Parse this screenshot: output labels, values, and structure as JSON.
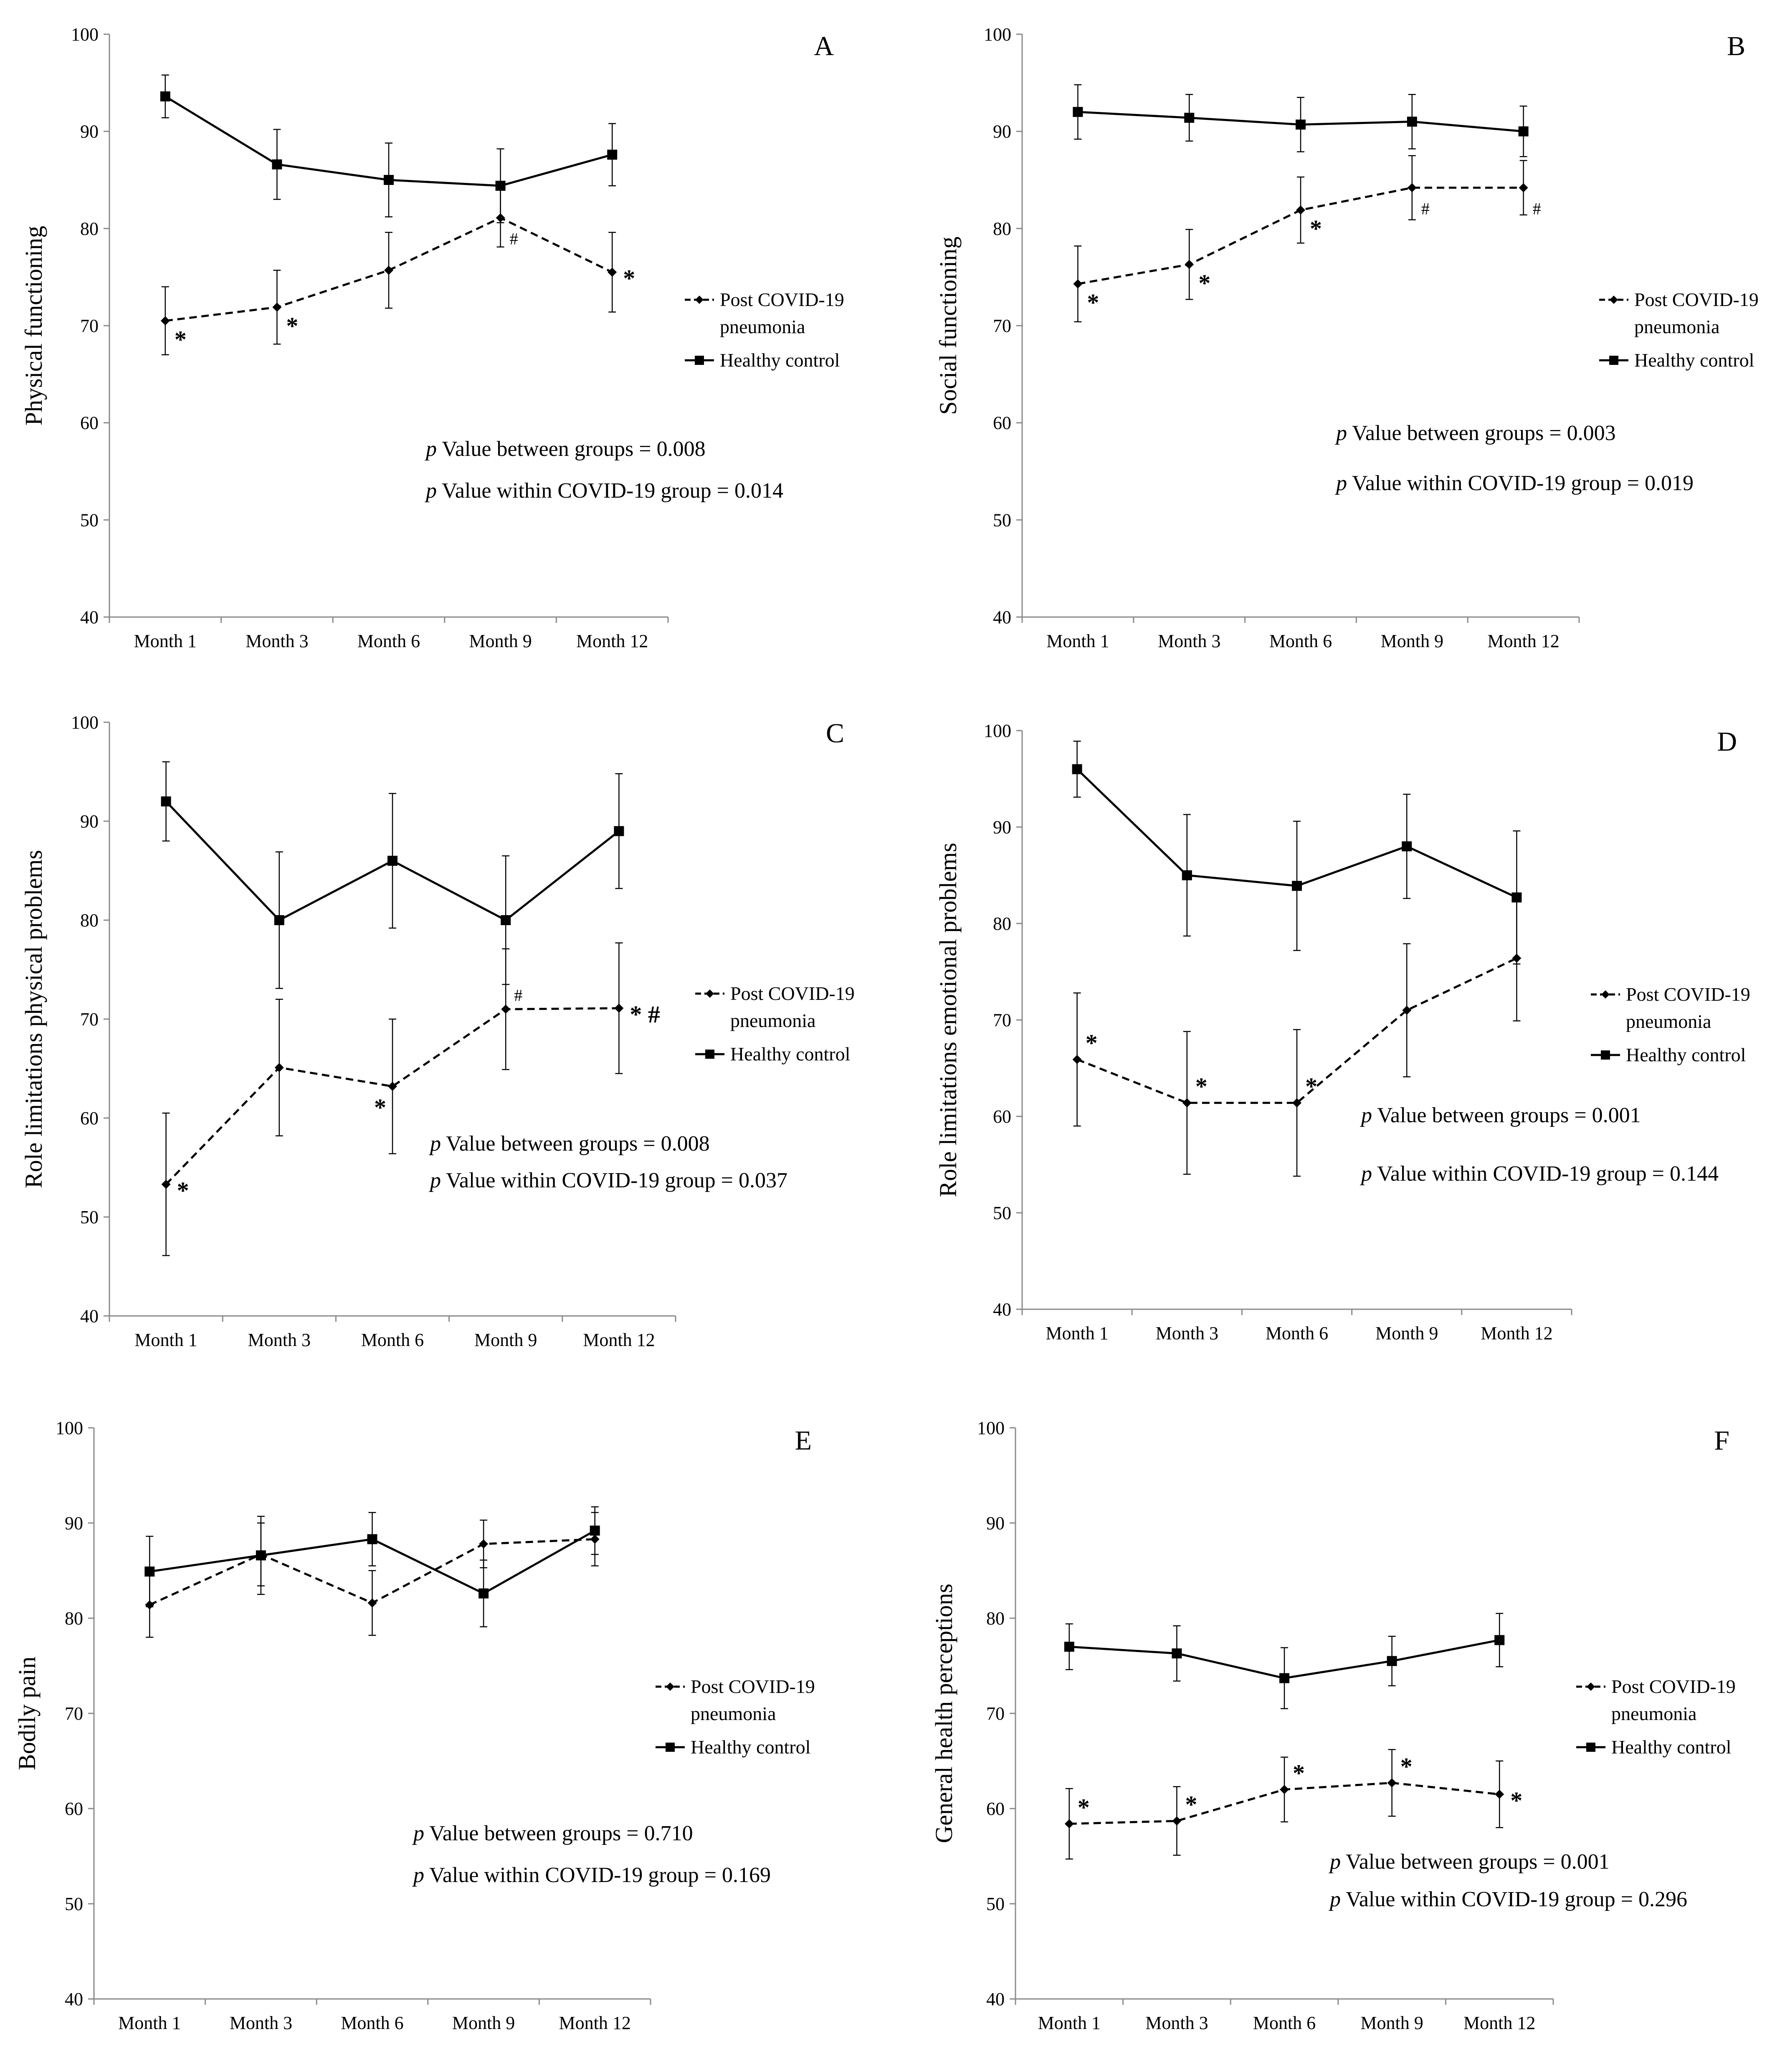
{
  "chart_data": [
    {
      "type": "line",
      "panel": "A",
      "ylabel": "Physical functioning",
      "categories": [
        "Month 1",
        "Month 3",
        "Month 6",
        "Month 9",
        "Month 12"
      ],
      "ylim": [
        40,
        100
      ],
      "yticks": [
        40,
        50,
        60,
        70,
        80,
        90,
        100
      ],
      "series": [
        {
          "name": "Post COVID-19 pneumonia",
          "style": "dashed",
          "marker": "diamond",
          "values": [
            70.5,
            71.9,
            75.7,
            81.1,
            75.5
          ],
          "errors": [
            3.5,
            3.8,
            3.9,
            3.0,
            4.1
          ]
        },
        {
          "name": "Healthy control",
          "style": "solid",
          "marker": "square",
          "values": [
            93.6,
            86.6,
            85.0,
            84.4,
            87.6
          ],
          "errors": [
            2.2,
            3.6,
            3.8,
            3.8,
            3.2
          ]
        }
      ],
      "annotations": [
        {
          "series": 0,
          "index": 0,
          "text": "*",
          "pos": "below-right"
        },
        {
          "series": 0,
          "index": 1,
          "text": "*",
          "pos": "below-right"
        },
        {
          "series": 0,
          "index": 3,
          "text": "#",
          "pos": "below-right"
        },
        {
          "series": 0,
          "index": 4,
          "text": "*",
          "pos": "right"
        }
      ],
      "legend": [
        "Post COVID-19",
        "pneumonia",
        "Healthy control"
      ],
      "p_between": {
        "p": "p",
        "text": " Value between groups = 0.008"
      },
      "p_within": {
        "p": "p",
        "text": " Value within COVID-19 group = 0.014"
      }
    },
    {
      "type": "line",
      "panel": "B",
      "ylabel": "Social functioning",
      "categories": [
        "Month 1",
        "Month 3",
        "Month 6",
        "Month 9",
        "Month 12"
      ],
      "ylim": [
        40,
        100
      ],
      "yticks": [
        40,
        50,
        60,
        70,
        80,
        90,
        100
      ],
      "series": [
        {
          "name": "Post COVID-19 pneumonia",
          "style": "dashed",
          "marker": "diamond",
          "values": [
            74.3,
            76.3,
            81.9,
            84.2,
            84.2
          ],
          "errors": [
            3.9,
            3.6,
            3.4,
            3.3,
            2.8
          ]
        },
        {
          "name": "Healthy control",
          "style": "solid",
          "marker": "square",
          "values": [
            92.0,
            91.4,
            90.7,
            91.0,
            90.0
          ],
          "errors": [
            2.8,
            2.4,
            2.8,
            2.8,
            2.6
          ]
        }
      ],
      "annotations": [
        {
          "series": 0,
          "index": 0,
          "text": "*",
          "pos": "below-right"
        },
        {
          "series": 0,
          "index": 1,
          "text": "*",
          "pos": "below-right"
        },
        {
          "series": 0,
          "index": 2,
          "text": "*",
          "pos": "below-right"
        },
        {
          "series": 0,
          "index": 3,
          "text": "#",
          "pos": "below-right"
        },
        {
          "series": 0,
          "index": 4,
          "text": "#",
          "pos": "below-right"
        }
      ],
      "legend": [
        "Post COVID-19",
        "pneumonia",
        "Healthy control"
      ],
      "p_between": {
        "p": "p",
        "text": " Value between groups = 0.003"
      },
      "p_within": {
        "p": "p",
        "text": " Value within COVID-19 group = 0.019"
      }
    },
    {
      "type": "line",
      "panel": "C",
      "ylabel": "Role limitations physical problems",
      "categories": [
        "Month 1",
        "Month 3",
        "Month 6",
        "Month 9",
        "Month 12"
      ],
      "ylim": [
        40,
        100
      ],
      "yticks": [
        40,
        50,
        60,
        70,
        80,
        90,
        100
      ],
      "series": [
        {
          "name": "Post COVID-19 pneumonia",
          "style": "dashed",
          "marker": "diamond",
          "values": [
            53.3,
            65.1,
            63.2,
            71.0,
            71.1
          ],
          "errors": [
            7.2,
            6.9,
            6.8,
            6.1,
            6.6
          ]
        },
        {
          "name": "Healthy control",
          "style": "solid",
          "marker": "square",
          "values": [
            92.0,
            80.0,
            86.0,
            80.0,
            89.0
          ],
          "errors": [
            4.0,
            6.9,
            6.8,
            6.5,
            5.8
          ]
        }
      ],
      "annotations": [
        {
          "series": 0,
          "index": 0,
          "text": "*",
          "pos": "right"
        },
        {
          "series": 0,
          "index": 2,
          "text": "*",
          "pos": "below-left"
        },
        {
          "series": 0,
          "index": 3,
          "text": "#",
          "pos": "above-right"
        },
        {
          "series": 0,
          "index": 4,
          "text": "* #",
          "pos": "right"
        }
      ],
      "legend": [
        "Post COVID-19",
        "pneumonia",
        "Healthy control"
      ],
      "p_between": {
        "p": "p",
        "text": " Value between groups = 0.008"
      },
      "p_within": {
        "p": "p",
        "text": " Value within COVID-19 group = 0.037"
      }
    },
    {
      "type": "line",
      "panel": "D",
      "ylabel": "Role limitations emotional problems",
      "categories": [
        "Month 1",
        "Month 3",
        "Month 6",
        "Month 9",
        "Month 12"
      ],
      "ylim": [
        40,
        100
      ],
      "yticks": [
        40,
        50,
        60,
        70,
        80,
        90,
        100
      ],
      "series": [
        {
          "name": "Post COVID-19 pneumonia",
          "style": "dashed",
          "marker": "diamond",
          "values": [
            65.9,
            61.4,
            61.4,
            71.0,
            76.4
          ],
          "errors": [
            6.9,
            7.4,
            7.6,
            6.9,
            6.5
          ]
        },
        {
          "name": "Healthy control",
          "style": "solid",
          "marker": "square",
          "values": [
            96.0,
            85.0,
            83.9,
            88.0,
            82.7
          ],
          "errors": [
            2.9,
            6.3,
            6.7,
            5.4,
            6.9
          ]
        }
      ],
      "annotations": [
        {
          "series": 0,
          "index": 0,
          "text": "*",
          "pos": "above-right"
        },
        {
          "series": 0,
          "index": 1,
          "text": "*",
          "pos": "above-right"
        },
        {
          "series": 0,
          "index": 2,
          "text": "*",
          "pos": "above-right"
        }
      ],
      "legend": [
        "Post COVID-19",
        "pneumonia",
        "Healthy control"
      ],
      "p_between": {
        "p": "p",
        "text": " Value between groups = 0.001"
      },
      "p_within": {
        "p": "p",
        "text": " Value within COVID-19 group = 0.144"
      }
    },
    {
      "type": "line",
      "panel": "E",
      "ylabel": "Bodily pain",
      "categories": [
        "Month 1",
        "Month 3",
        "Month 6",
        "Month 9",
        "Month 12"
      ],
      "ylim": [
        40,
        100
      ],
      "yticks": [
        40,
        50,
        60,
        70,
        80,
        90,
        100
      ],
      "series": [
        {
          "name": "Post COVID-19 pneumonia",
          "style": "dashed",
          "marker": "diamond",
          "values": [
            81.4,
            86.7,
            81.6,
            87.8,
            88.3
          ],
          "errors": [
            3.4,
            3.3,
            3.4,
            2.5,
            2.8
          ]
        },
        {
          "name": "Healthy control",
          "style": "solid",
          "marker": "square",
          "values": [
            84.9,
            86.6,
            88.3,
            82.6,
            89.2
          ],
          "errors": [
            3.7,
            4.1,
            2.8,
            3.5,
            2.5
          ]
        }
      ],
      "annotations": [],
      "legend": [
        "Post COVID-19",
        "pneumonia",
        "Healthy control"
      ],
      "p_between": {
        "p": "p",
        "text": " Value between groups = 0.710"
      },
      "p_within": {
        "p": "p",
        "text": " Value within COVID-19 group = 0.169"
      }
    },
    {
      "type": "line",
      "panel": "F",
      "ylabel": "General health perceptions",
      "categories": [
        "Month 1",
        "Month 3",
        "Month 6",
        "Month 9",
        "Month 12"
      ],
      "ylim": [
        40,
        100
      ],
      "yticks": [
        40,
        50,
        60,
        70,
        80,
        90,
        100
      ],
      "series": [
        {
          "name": "Post COVID-19 pneumonia",
          "style": "dashed",
          "marker": "diamond",
          "values": [
            58.4,
            58.7,
            62.0,
            62.7,
            61.5
          ],
          "errors": [
            3.7,
            3.6,
            3.4,
            3.5,
            3.5
          ]
        },
        {
          "name": "Healthy control",
          "style": "solid",
          "marker": "square",
          "values": [
            77.0,
            76.3,
            73.7,
            75.5,
            77.7
          ],
          "errors": [
            2.4,
            2.9,
            3.2,
            2.6,
            2.8
          ]
        }
      ],
      "annotations": [
        {
          "series": 0,
          "index": 0,
          "text": "*",
          "pos": "above-right"
        },
        {
          "series": 0,
          "index": 1,
          "text": "*",
          "pos": "above-right"
        },
        {
          "series": 0,
          "index": 2,
          "text": "*",
          "pos": "above-right"
        },
        {
          "series": 0,
          "index": 3,
          "text": "*",
          "pos": "above-right"
        },
        {
          "series": 0,
          "index": 4,
          "text": "*",
          "pos": "right"
        }
      ],
      "legend": [
        "Post COVID-19",
        "pneumonia",
        "Healthy control"
      ],
      "p_between": {
        "p": "p",
        "text": " Value between groups = 0.001"
      },
      "p_within": {
        "p": "p",
        "text": " Value within COVID-19 group = 0.296"
      }
    }
  ]
}
